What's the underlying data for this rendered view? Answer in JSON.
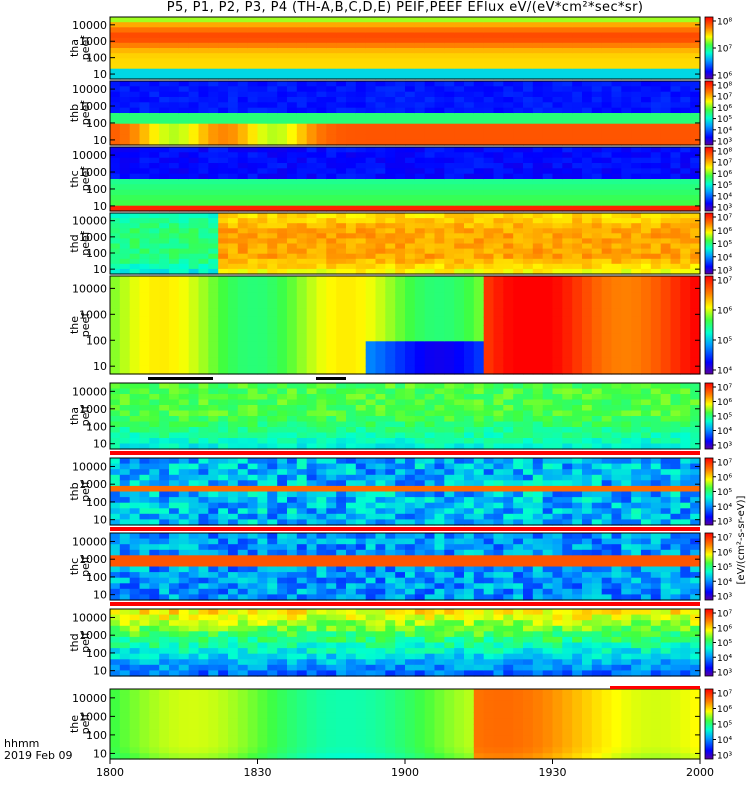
{
  "title": "P5, P1, P2, P3, P4 (TH-A,B,C,D,E) PEIF,PEEF EFlux eV/(eV*cm²*sec*sr)",
  "footer": {
    "units_line1": "hhmm",
    "units_line2": "2019 Feb 09"
  },
  "colors": {
    "strip_red": "#ff0000",
    "strip_black": "#000000"
  },
  "chart_data": {
    "type": "heatmap",
    "title": "P5, P1, P2, P3, P4 (TH-A,B,C,D,E) PEIF,PEEF EFlux eV/(eV*cm²*sec*sr)",
    "x_ticks": [
      "1800",
      "1830",
      "1900",
      "1930",
      "2000"
    ],
    "x_range_hhmm": [
      "1800",
      "2000"
    ],
    "y_scale": "log",
    "y_range_eV": [
      5,
      30000
    ],
    "y_ticks": [
      "10",
      "100",
      "1000",
      "10000"
    ],
    "colorbar_label": "[eV/(cm²-s-sr-eV)]",
    "panels": [
      {
        "name": "tha_peef",
        "ylabel": [
          "tha",
          "peef"
        ],
        "colorbar_ticks": [
          "10⁶",
          "10⁷",
          "10⁸"
        ]
      },
      {
        "name": "thb_peef",
        "ylabel": [
          "thb",
          "peef"
        ],
        "colorbar_ticks": [
          "10³",
          "10⁴",
          "10⁵",
          "10⁶",
          "10⁷",
          "10⁸"
        ]
      },
      {
        "name": "thc_peef",
        "ylabel": [
          "thc",
          "peef"
        ],
        "colorbar_ticks": [
          "10³",
          "10⁴",
          "10⁵",
          "10⁶",
          "10⁷",
          "10⁸"
        ]
      },
      {
        "name": "thd_peef",
        "ylabel": [
          "thd",
          "peef"
        ],
        "colorbar_ticks": [
          "10³",
          "10⁴",
          "10⁵",
          "10⁶",
          "10⁷"
        ]
      },
      {
        "name": "the_peef",
        "ylabel": [
          "the",
          "peef"
        ],
        "colorbar_ticks": [
          "10⁴",
          "10⁵",
          "10⁶",
          "10⁷"
        ]
      },
      {
        "name": "tha_peif",
        "ylabel": [
          "tha",
          "peif"
        ],
        "colorbar_ticks": [
          "10³",
          "10⁴",
          "10⁵",
          "10⁶",
          "10⁷"
        ]
      },
      {
        "name": "thb_peif",
        "ylabel": [
          "thb",
          "peif"
        ],
        "colorbar_ticks": [
          "10³",
          "10⁴",
          "10⁵",
          "10⁶",
          "10⁷"
        ]
      },
      {
        "name": "thc_peif",
        "ylabel": [
          "thc",
          "peif"
        ],
        "colorbar_ticks": [
          "10³",
          "10⁴",
          "10⁵",
          "10⁶",
          "10⁷"
        ]
      },
      {
        "name": "thd_peif",
        "ylabel": [
          "thd",
          "peif"
        ],
        "colorbar_ticks": [
          "10³",
          "10⁴",
          "10⁵",
          "10⁶",
          "10⁷"
        ]
      },
      {
        "name": "the_peif",
        "ylabel": [
          "the",
          "peif"
        ],
        "colorbar_ticks": [
          "10³",
          "10⁴",
          "10⁵",
          "10⁶",
          "10⁷"
        ]
      }
    ]
  }
}
